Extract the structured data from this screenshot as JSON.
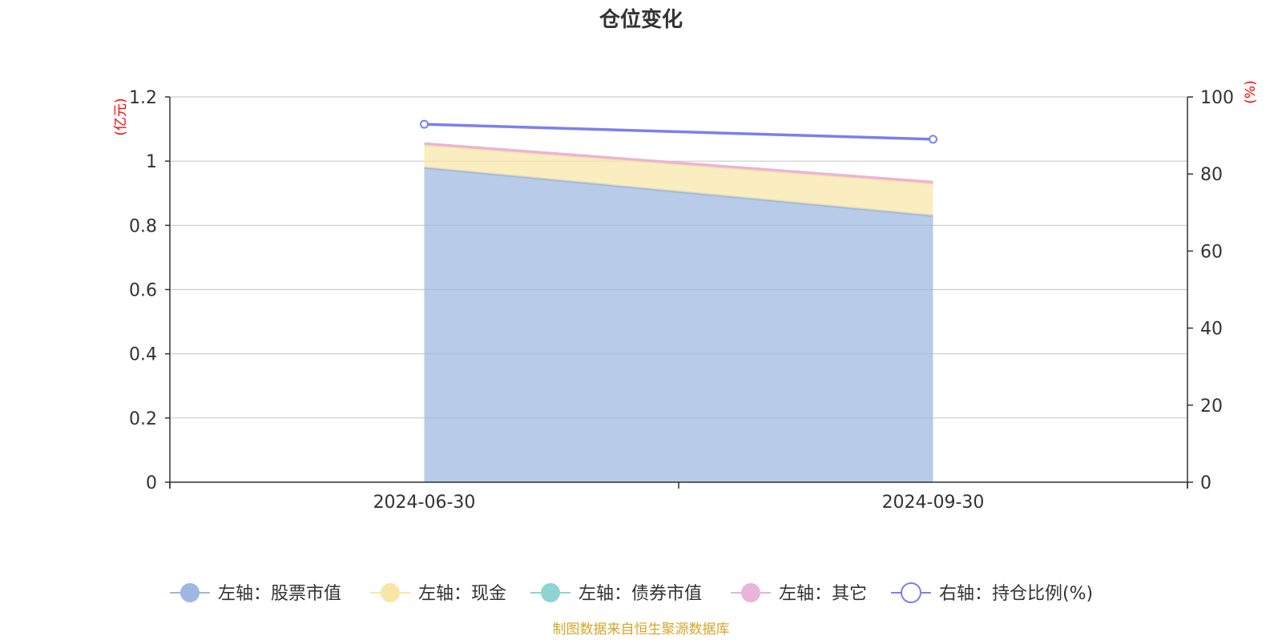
{
  "chart_data": {
    "type": "area",
    "title": "仓位变化",
    "source_note": "制图数据来自恒生聚源数据库",
    "categories": [
      "2024-06-30",
      "2024-09-30"
    ],
    "left_axis": {
      "unit_label": "(亿元)",
      "ylim": [
        0,
        1.2
      ],
      "ticks": [
        "0",
        "0.2",
        "0.4",
        "0.6",
        "0.8",
        "1",
        "1.2"
      ]
    },
    "right_axis": {
      "unit_label": "(%)",
      "ylim": [
        0,
        100
      ],
      "ticks": [
        "0",
        "20",
        "40",
        "60",
        "80",
        "100"
      ]
    },
    "stacked": true,
    "grid": true,
    "legend_position": "bottom",
    "series": [
      {
        "name": "左轴：股票市值",
        "axis": "left",
        "type": "area",
        "color": "#9db7e0",
        "values": [
          0.98,
          0.83
        ]
      },
      {
        "name": "左轴：现金",
        "axis": "left",
        "type": "area",
        "color": "#f8e6a6",
        "values": [
          0.07,
          0.1
        ]
      },
      {
        "name": "左轴：债券市值",
        "axis": "left",
        "type": "area",
        "color": "#8fd3d3",
        "values": [
          0,
          0
        ]
      },
      {
        "name": "左轴：其它",
        "axis": "left",
        "type": "area",
        "color": "#e8b4da",
        "values": [
          0.005,
          0.005
        ]
      },
      {
        "name": "右轴：持仓比例(%)",
        "axis": "right",
        "type": "line",
        "color": "#7b7ff0",
        "values": [
          92.9,
          89.0
        ]
      }
    ]
  }
}
